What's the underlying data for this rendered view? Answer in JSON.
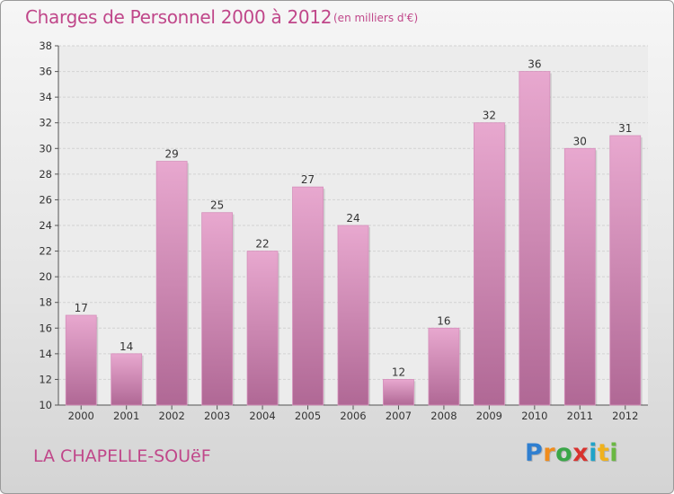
{
  "title": "Charges de Personnel 2000 à 2012",
  "subtitle": "(en milliers d'€)",
  "commune": "LA CHAPELLE-SOUëF",
  "logo": {
    "letters": [
      "P",
      "r",
      "o",
      "x",
      "i",
      "t",
      "i"
    ],
    "colors": [
      "#2f7fd0",
      "#f08c1c",
      "#3aa648",
      "#d8322e",
      "#1fa3c8",
      "#f0b21c",
      "#6ab842"
    ]
  },
  "colors": {
    "accent": "#c0478a",
    "bar_top": "#e8a8cf",
    "bar_bottom": "#b06895"
  },
  "chart_data": {
    "type": "bar",
    "categories": [
      "2000",
      "2001",
      "2002",
      "2003",
      "2004",
      "2005",
      "2006",
      "2007",
      "2008",
      "2009",
      "2010",
      "2011",
      "2012"
    ],
    "values": [
      17,
      14,
      29,
      25,
      22,
      27,
      24,
      12,
      16,
      32,
      36,
      30,
      31
    ],
    "ylim": [
      10,
      38
    ],
    "yticks": [
      10,
      12,
      14,
      16,
      18,
      20,
      22,
      24,
      26,
      28,
      30,
      32,
      34,
      36,
      38
    ],
    "grid": true,
    "data_labels": true
  }
}
